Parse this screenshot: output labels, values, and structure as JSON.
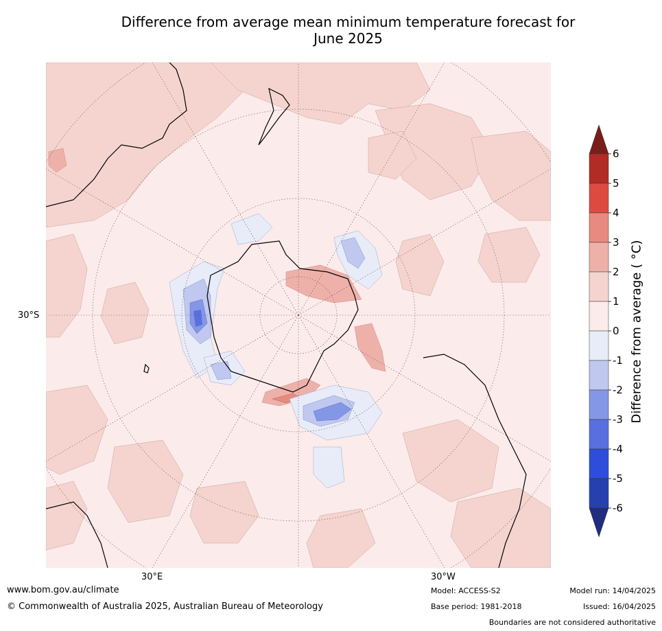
{
  "title_line1": "Difference from average mean minimum temperature forecast for",
  "title_line2": "June 2025",
  "axis_labels": {
    "lat_left": "30°S",
    "lon_bottom_left": "30°E",
    "lon_bottom_right": "30°W"
  },
  "colorbar": {
    "label": "Difference from average ( °C)",
    "ticks": [
      "6",
      "5",
      "4",
      "3",
      "2",
      "1",
      "0",
      "-1",
      "-2",
      "-3",
      "-4",
      "-5",
      "-6"
    ],
    "colors": [
      "#7a1e1a",
      "#b02c25",
      "#dc4b3f",
      "#e88a80",
      "#eeb1aa",
      "#f5d4d0",
      "#fbebea",
      "#e8ecf8",
      "#c0c8ef",
      "#8496e6",
      "#5a6fdf",
      "#2f4ddb",
      "#2640b0",
      "#1f2d7e"
    ]
  },
  "footer": {
    "url": "www.bom.gov.au/climate",
    "copyright": "© Commonwealth of Australia 2025, Australian Bureau of Meteorology",
    "model": "Model: ACCESS-S2",
    "base_period": "Base period: 1981-2018",
    "model_run": "Model run: 14/04/2025",
    "issued": "Issued: 16/04/2025",
    "disclaimer": "Boundaries are not considered authoritative"
  }
}
